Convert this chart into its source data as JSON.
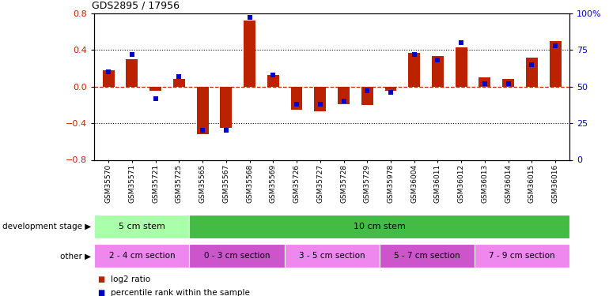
{
  "title": "GDS2895 / 17956",
  "samples": [
    "GSM35570",
    "GSM35571",
    "GSM35721",
    "GSM35725",
    "GSM35565",
    "GSM35567",
    "GSM35568",
    "GSM35569",
    "GSM35726",
    "GSM35727",
    "GSM35728",
    "GSM35729",
    "GSM35978",
    "GSM36004",
    "GSM36011",
    "GSM36012",
    "GSM36013",
    "GSM36014",
    "GSM36015",
    "GSM36016"
  ],
  "log2_ratio": [
    0.18,
    0.3,
    -0.05,
    0.08,
    -0.52,
    -0.45,
    0.72,
    0.13,
    -0.25,
    -0.27,
    -0.19,
    -0.2,
    -0.05,
    0.37,
    0.33,
    0.43,
    0.1,
    0.08,
    0.32,
    0.5
  ],
  "percentile": [
    60,
    72,
    42,
    57,
    20,
    20,
    97,
    58,
    38,
    38,
    40,
    47,
    46,
    72,
    68,
    80,
    52,
    52,
    65,
    78
  ],
  "bar_color": "#bb2200",
  "dot_color": "#0000cc",
  "ylim": [
    -0.8,
    0.8
  ],
  "y2lim": [
    0,
    100
  ],
  "yticks": [
    -0.8,
    -0.4,
    0.0,
    0.4,
    0.8
  ],
  "y2ticks": [
    0,
    25,
    50,
    75,
    100
  ],
  "y2ticklabels": [
    "0",
    "25",
    "50",
    "75",
    "100%"
  ],
  "hlines": [
    -0.4,
    0.4
  ],
  "dev_stage_groups": [
    {
      "label": "5 cm stem",
      "start": 0,
      "end": 3,
      "color": "#aaffaa"
    },
    {
      "label": "10 cm stem",
      "start": 4,
      "end": 19,
      "color": "#44bb44"
    }
  ],
  "other_groups": [
    {
      "label": "2 - 4 cm section",
      "start": 0,
      "end": 3,
      "color": "#ee88ee"
    },
    {
      "label": "0 - 3 cm section",
      "start": 4,
      "end": 7,
      "color": "#cc55cc"
    },
    {
      "label": "3 - 5 cm section",
      "start": 8,
      "end": 11,
      "color": "#ee88ee"
    },
    {
      "label": "5 - 7 cm section",
      "start": 12,
      "end": 15,
      "color": "#cc55cc"
    },
    {
      "label": "7 - 9 cm section",
      "start": 16,
      "end": 19,
      "color": "#ee88ee"
    }
  ],
  "legend_log2_label": "log2 ratio",
  "legend_pct_label": "percentile rank within the sample",
  "bar_width": 0.5
}
